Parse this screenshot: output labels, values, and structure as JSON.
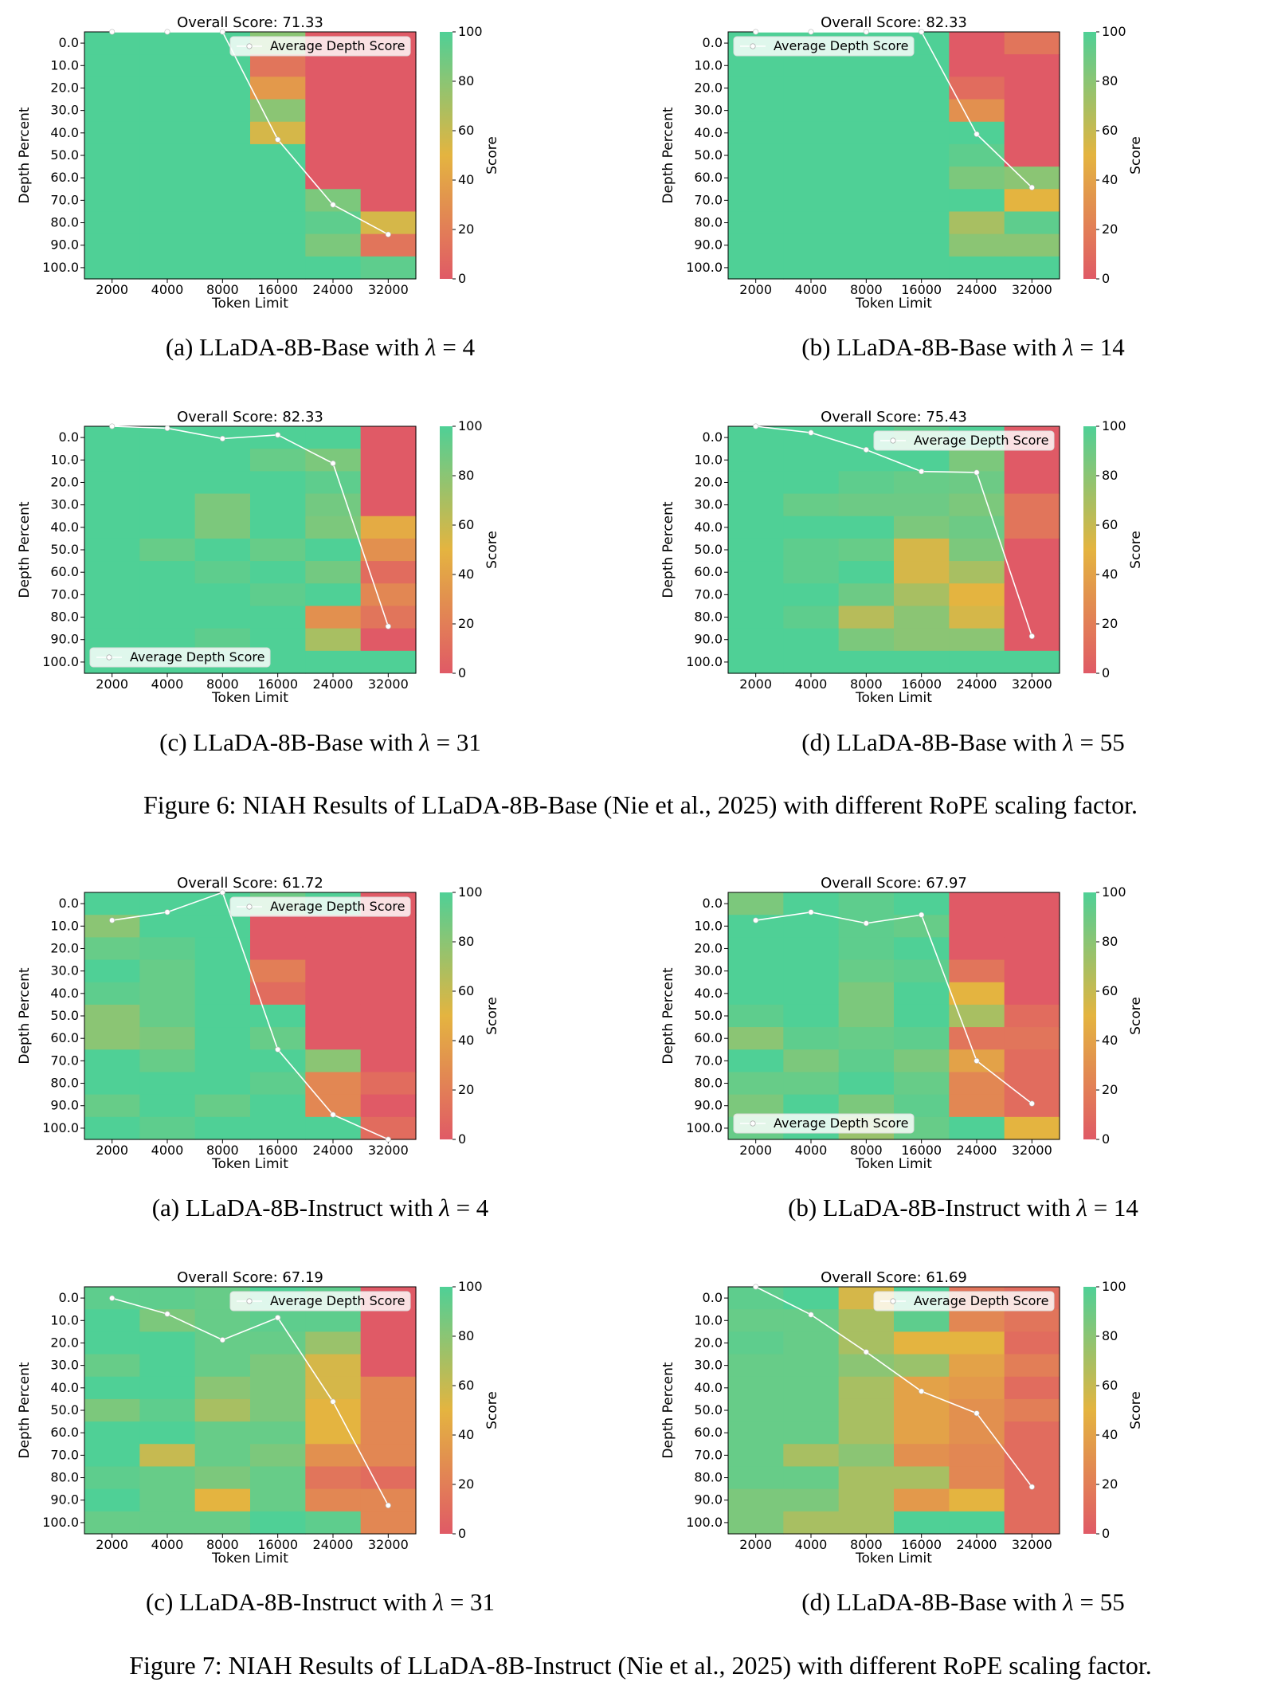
{
  "colors": {
    "cmap_low": "#e05a66",
    "cmap_mid": "#e4b440",
    "cmap_high": "#4fd096",
    "line": "#ffffff"
  },
  "axes_common": {
    "type": "heatmap",
    "xlabel": "Token Limit",
    "ylabel": "Depth Percent",
    "colorbar_label": "Score",
    "colorbar_range": [
      0,
      100
    ],
    "colorbar_ticks": [
      "0",
      "20",
      "40",
      "60",
      "80",
      "100"
    ],
    "x_ticks": [
      "2000",
      "4000",
      "8000",
      "16000",
      "24000",
      "32000"
    ],
    "y_ticks": [
      "0.0",
      "10.0",
      "20.0",
      "30.0",
      "40.0",
      "50.0",
      "60.0",
      "70.0",
      "80.0",
      "90.0",
      "100.0"
    ],
    "legend_label": "Average Depth Score"
  },
  "chart_data": [
    {
      "type": "heatmap",
      "title": "Overall Score: 71.33",
      "legend_position": "top-right",
      "matrix": [
        [
          100,
          100,
          100,
          80,
          0,
          0
        ],
        [
          100,
          100,
          100,
          15,
          0,
          0
        ],
        [
          100,
          100,
          100,
          35,
          0,
          0
        ],
        [
          100,
          100,
          100,
          80,
          0,
          0
        ],
        [
          100,
          100,
          100,
          55,
          0,
          0
        ],
        [
          100,
          100,
          100,
          100,
          0,
          0
        ],
        [
          100,
          100,
          100,
          100,
          0,
          0
        ],
        [
          100,
          100,
          100,
          100,
          85,
          0
        ],
        [
          100,
          100,
          100,
          100,
          95,
          55
        ],
        [
          100,
          100,
          100,
          100,
          85,
          15
        ],
        [
          100,
          100,
          100,
          100,
          100,
          95
        ]
      ],
      "average_line": [
        100,
        100,
        100,
        56.4,
        30,
        18
      ]
    },
    {
      "type": "heatmap",
      "title": "Overall Score: 82.33",
      "legend_position": "top-left",
      "matrix": [
        [
          100,
          100,
          100,
          100,
          0,
          15
        ],
        [
          100,
          100,
          100,
          100,
          0,
          0
        ],
        [
          100,
          100,
          100,
          100,
          10,
          0
        ],
        [
          100,
          100,
          100,
          100,
          30,
          0
        ],
        [
          100,
          100,
          100,
          100,
          100,
          0
        ],
        [
          100,
          100,
          100,
          100,
          95,
          0
        ],
        [
          100,
          100,
          100,
          100,
          85,
          80
        ],
        [
          100,
          100,
          100,
          100,
          100,
          50
        ],
        [
          100,
          100,
          100,
          100,
          70,
          95
        ],
        [
          100,
          100,
          100,
          100,
          80,
          80
        ],
        [
          100,
          100,
          100,
          100,
          100,
          100
        ]
      ],
      "average_line": [
        100,
        100,
        100,
        100,
        58.6,
        37
      ]
    },
    {
      "type": "heatmap",
      "title": "Overall Score: 82.33",
      "legend_position": "bottom-left",
      "matrix": [
        [
          100,
          100,
          100,
          100,
          100,
          0
        ],
        [
          100,
          100,
          100,
          92,
          85,
          0
        ],
        [
          100,
          100,
          100,
          100,
          95,
          0
        ],
        [
          100,
          100,
          85,
          100,
          88,
          0
        ],
        [
          100,
          100,
          85,
          100,
          85,
          45
        ],
        [
          100,
          92,
          100,
          92,
          100,
          30
        ],
        [
          100,
          100,
          95,
          100,
          88,
          10
        ],
        [
          100,
          100,
          100,
          95,
          100,
          25
        ],
        [
          100,
          100,
          100,
          100,
          30,
          15
        ],
        [
          100,
          100,
          95,
          100,
          70,
          0
        ],
        [
          100,
          100,
          100,
          100,
          100,
          100
        ]
      ],
      "average_line": [
        100,
        99.2,
        95,
        96.5,
        85,
        19
      ]
    },
    {
      "type": "heatmap",
      "title": "Overall Score: 75.43",
      "legend_position": "top-right",
      "matrix": [
        [
          100,
          100,
          100,
          95,
          100,
          0
        ],
        [
          100,
          100,
          100,
          100,
          85,
          0
        ],
        [
          100,
          100,
          95,
          92,
          90,
          0
        ],
        [
          100,
          92,
          90,
          90,
          85,
          15
        ],
        [
          100,
          100,
          100,
          85,
          90,
          15
        ],
        [
          100,
          95,
          92,
          55,
          85,
          0
        ],
        [
          100,
          95,
          100,
          55,
          70,
          0
        ],
        [
          100,
          100,
          90,
          70,
          50,
          0
        ],
        [
          100,
          95,
          65,
          80,
          55,
          0
        ],
        [
          100,
          100,
          85,
          80,
          80,
          0
        ],
        [
          100,
          100,
          100,
          100,
          100,
          100
        ]
      ],
      "average_line": [
        100,
        97.4,
        90.5,
        81.7,
        81.3,
        15
      ]
    },
    {
      "type": "heatmap",
      "title": "Overall Score: 61.72",
      "legend_position": "top-right",
      "matrix": [
        [
          100,
          100,
          100,
          90,
          100,
          0
        ],
        [
          80,
          100,
          100,
          0,
          0,
          0
        ],
        [
          92,
          95,
          100,
          0,
          0,
          0
        ],
        [
          100,
          92,
          100,
          20,
          0,
          0
        ],
        [
          95,
          92,
          100,
          10,
          0,
          0
        ],
        [
          80,
          92,
          100,
          100,
          0,
          0
        ],
        [
          80,
          85,
          100,
          92,
          0,
          0
        ],
        [
          100,
          92,
          100,
          100,
          80,
          0
        ],
        [
          100,
          100,
          100,
          95,
          25,
          10
        ],
        [
          92,
          100,
          92,
          100,
          25,
          0
        ],
        [
          100,
          95,
          100,
          100,
          100,
          10
        ]
      ],
      "average_line": [
        88.7,
        92,
        100,
        36.4,
        10,
        0
      ]
    },
    {
      "type": "heatmap",
      "title": "Overall Score: 67.97",
      "legend_position": "bottom-left",
      "matrix": [
        [
          85,
          100,
          95,
          100,
          0,
          0
        ],
        [
          100,
          100,
          95,
          92,
          0,
          0
        ],
        [
          100,
          100,
          95,
          100,
          0,
          0
        ],
        [
          100,
          100,
          92,
          95,
          15,
          0
        ],
        [
          100,
          100,
          85,
          100,
          50,
          0
        ],
        [
          95,
          100,
          85,
          100,
          70,
          10
        ],
        [
          80,
          95,
          92,
          95,
          15,
          15
        ],
        [
          100,
          85,
          95,
          85,
          40,
          10
        ],
        [
          92,
          92,
          100,
          92,
          25,
          10
        ],
        [
          85,
          100,
          85,
          95,
          25,
          10
        ],
        [
          92,
          100,
          75,
          92,
          100,
          50
        ]
      ],
      "average_line": [
        88.7,
        92,
        87.5,
        90.9,
        31.8,
        14.5
      ]
    },
    {
      "type": "heatmap",
      "title": "Overall Score: 67.19",
      "legend_position": "top-right",
      "matrix": [
        [
          95,
          95,
          92,
          100,
          95,
          0
        ],
        [
          100,
          85,
          92,
          95,
          95,
          0
        ],
        [
          100,
          100,
          92,
          92,
          75,
          0
        ],
        [
          92,
          100,
          92,
          85,
          55,
          0
        ],
        [
          100,
          100,
          80,
          85,
          55,
          25
        ],
        [
          85,
          95,
          70,
          85,
          50,
          25
        ],
        [
          100,
          100,
          92,
          92,
          50,
          25
        ],
        [
          100,
          60,
          92,
          85,
          30,
          25
        ],
        [
          95,
          92,
          85,
          92,
          15,
          10
        ],
        [
          100,
          92,
          50,
          92,
          25,
          25
        ],
        [
          92,
          92,
          92,
          100,
          95,
          25
        ]
      ],
      "average_line": [
        95.4,
        89,
        78.5,
        87.5,
        53.5,
        11.5
      ]
    },
    {
      "type": "heatmap",
      "title": "Overall Score: 61.69",
      "legend_position": "top-right",
      "matrix": [
        [
          95,
          100,
          55,
          100,
          15,
          10
        ],
        [
          92,
          92,
          70,
          95,
          25,
          15
        ],
        [
          95,
          92,
          70,
          50,
          50,
          10
        ],
        [
          92,
          92,
          80,
          75,
          40,
          20
        ],
        [
          92,
          92,
          70,
          40,
          35,
          10
        ],
        [
          92,
          92,
          70,
          40,
          30,
          20
        ],
        [
          92,
          92,
          70,
          40,
          30,
          10
        ],
        [
          92,
          70,
          80,
          30,
          25,
          10
        ],
        [
          92,
          92,
          70,
          70,
          25,
          10
        ],
        [
          85,
          85,
          70,
          35,
          50,
          10
        ],
        [
          85,
          70,
          70,
          100,
          100,
          10
        ]
      ],
      "average_line": [
        100,
        88.7,
        73.6,
        57.7,
        48.8,
        19
      ]
    }
  ],
  "captions": [
    {
      "text": "(a) LLaDA-8B-Base with ",
      "lam": "λ",
      "rest": " = 4"
    },
    {
      "text": "(b) LLaDA-8B-Base with ",
      "lam": "λ",
      "rest": " = 14"
    },
    {
      "text": "(c) LLaDA-8B-Base with ",
      "lam": "λ",
      "rest": " = 31"
    },
    {
      "text": "(d) LLaDA-8B-Base with ",
      "lam": "λ",
      "rest": " = 55"
    },
    {
      "text": "(a) LLaDA-8B-Instruct with ",
      "lam": "λ",
      "rest": " = 4"
    },
    {
      "text": "(b) LLaDA-8B-Instruct with ",
      "lam": "λ",
      "rest": " = 14"
    },
    {
      "text": "(c) LLaDA-8B-Instruct with ",
      "lam": "λ",
      "rest": " = 31"
    },
    {
      "text": "(d) LLaDA-8B-Base with ",
      "lam": "λ",
      "rest": " = 55"
    }
  ],
  "figure_captions": [
    "Figure 6: NIAH Results of LLaDA-8B-Base (Nie et al., 2025) with different RoPE scaling factor.",
    "Figure 7: NIAH Results of LLaDA-8B-Instruct (Nie et al., 2025) with different RoPE scaling factor."
  ]
}
